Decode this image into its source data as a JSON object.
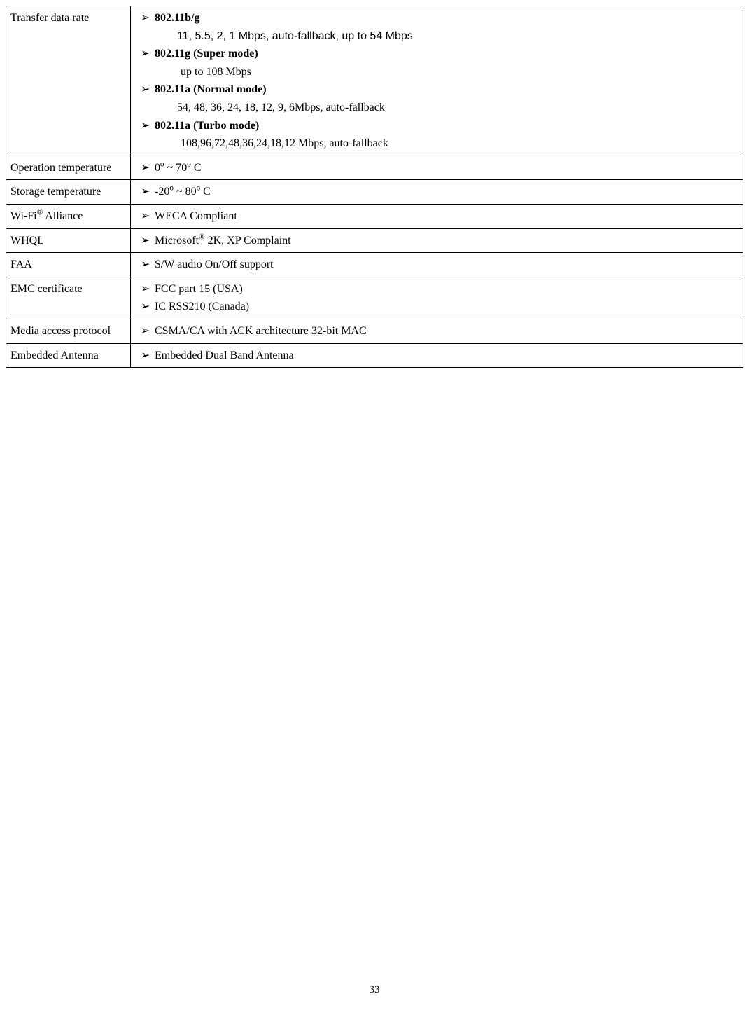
{
  "page_number": "33",
  "rows": {
    "transfer": {
      "label": "Transfer data rate",
      "item1_title": "802.11b/g",
      "item1_detail": "11, 5.5, 2, 1 Mbps, auto-fallback, up to 54 Mbps",
      "item2_title": "802.11g (Super mode)",
      "item2_detail": "up to 108 Mbps",
      "item3_title": "802.11a (Normal mode)",
      "item3_detail": "54, 48, 36, 24, 18, 12, 9, 6Mbps, auto-fallback",
      "item4_title": "802.11a (Turbo mode)",
      "item4_detail": "108,96,72,48,36,24,18,12 Mbps, auto-fallback"
    },
    "op_temp": {
      "label": "Operation temperature",
      "value_prefix": "0",
      "value_mid": " ~ 70",
      "value_suffix": " C"
    },
    "st_temp": {
      "label": "Storage temperature",
      "value_prefix": "-20",
      "value_mid": " ~ 80",
      "value_suffix": " C"
    },
    "wifi": {
      "label_part1": "Wi-Fi",
      "label_part2": "  Alliance",
      "value": "WECA Compliant"
    },
    "whql": {
      "label": "WHQL",
      "value_prefix": "Microsoft",
      "value_suffix": " 2K, XP Complaint"
    },
    "faa": {
      "label": "FAA",
      "value": "S/W audio On/Off support"
    },
    "emc": {
      "label": "EMC certificate",
      "value1": "FCC part 15 (USA)",
      "value2": "IC RSS210 (Canada)"
    },
    "map": {
      "label": "Media access protocol",
      "value": "CSMA/CA with ACK  architecture 32-bit MAC"
    },
    "antenna": {
      "label": "Embedded Antenna",
      "value": "Embedded Dual Band Antenna"
    }
  },
  "bullet_char": "➢",
  "sup_o": "o",
  "sup_r": "®"
}
